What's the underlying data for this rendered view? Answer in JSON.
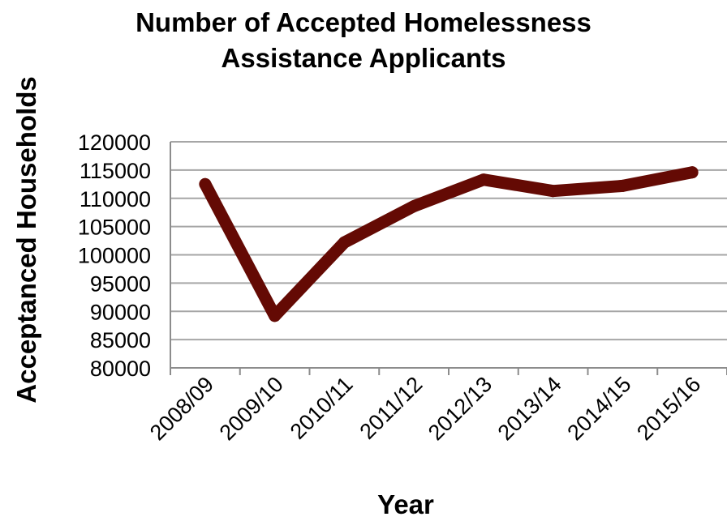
{
  "chart_data": {
    "type": "line",
    "title_lines": [
      "Number of Accepted Homelessness",
      "Assistance Applicants"
    ],
    "xlabel": "Year",
    "ylabel": "Acceptanced Households",
    "categories": [
      "2008/09",
      "2009/10",
      "2010/11",
      "2011/12",
      "2012/13",
      "2013/14",
      "2014/15",
      "2015/16"
    ],
    "series": [
      {
        "values": [
          112500,
          89200,
          102200,
          108600,
          113300,
          111300,
          112200,
          114600
        ]
      }
    ],
    "ylim": [
      80000,
      120000
    ],
    "yticks": [
      "80000",
      "85000",
      "90000",
      "95000",
      "100000",
      "105000",
      "110000",
      "115000",
      "120000"
    ],
    "grid": true,
    "legend": "none",
    "colors": {
      "line": "#640a04",
      "grid": "#a6a6a6",
      "axis": "#8c8c8c"
    }
  }
}
